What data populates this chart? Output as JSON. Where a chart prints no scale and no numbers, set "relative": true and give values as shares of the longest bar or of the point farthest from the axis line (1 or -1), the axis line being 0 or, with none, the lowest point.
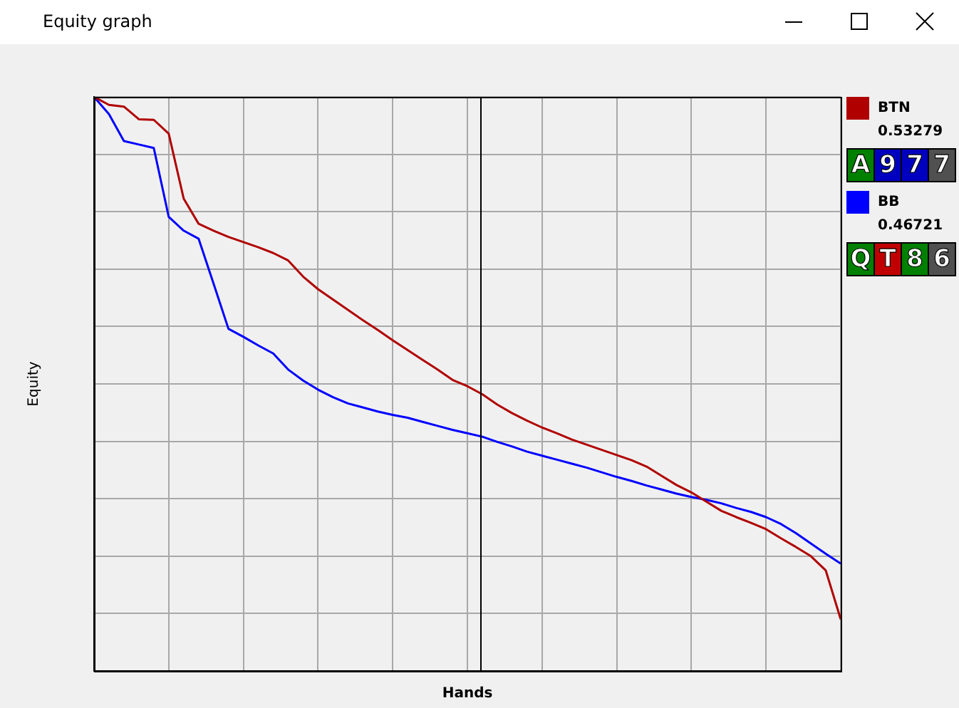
{
  "chart_data": {
    "type": "line",
    "title": "Equity graph",
    "xlabel": "Hands",
    "ylabel": "Equity",
    "relative": true,
    "categories": [
      null,
      null,
      null,
      null,
      null,
      null,
      null,
      null,
      null,
      null,
      null,
      null,
      null,
      null,
      null,
      null,
      null,
      null,
      null,
      null,
      null,
      null,
      null,
      null,
      null,
      null,
      null,
      null,
      null,
      null,
      null,
      null,
      null,
      null,
      null,
      null,
      null,
      null,
      null,
      null,
      null,
      null,
      null,
      null,
      null,
      null,
      null,
      null,
      null,
      null,
      null
    ],
    "grid": true,
    "legend": "right",
    "marker": "none",
    "line_style": "solid",
    "annotations": [
      "0.53279",
      "A 9 7 7",
      "0.46721",
      "Q T 8 6"
    ],
    "series": [
      {
        "name": "BTN",
        "color": "#b00000",
        "values": [
          1.0,
          0.986,
          0.983,
          0.961,
          0.96,
          0.936,
          0.823,
          0.779,
          0.767,
          0.756,
          0.747,
          0.738,
          0.728,
          0.715,
          0.687,
          0.665,
          0.647,
          0.629,
          0.611,
          0.594,
          0.576,
          0.559,
          0.542,
          0.525,
          0.507,
          0.496,
          0.482,
          0.464,
          0.449,
          0.436,
          0.424,
          0.414,
          0.403,
          0.394,
          0.385,
          0.376,
          0.367,
          0.356,
          0.34,
          0.324,
          0.311,
          0.295,
          0.279,
          0.268,
          0.258,
          0.247,
          0.231,
          0.216,
          0.2,
          0.175,
          0.09
        ]
      },
      {
        "name": "BB",
        "color": "#0000ff",
        "values": [
          1.0,
          0.97,
          0.923,
          0.917,
          0.911,
          0.791,
          0.767,
          0.753,
          0.675,
          0.596,
          0.582,
          0.567,
          0.553,
          0.525,
          0.506,
          0.49,
          0.477,
          0.466,
          0.459,
          0.452,
          0.446,
          0.441,
          0.434,
          0.427,
          0.42,
          0.414,
          0.408,
          0.399,
          0.391,
          0.382,
          0.375,
          0.368,
          0.361,
          0.354,
          0.346,
          0.338,
          0.331,
          0.323,
          0.316,
          0.309,
          0.303,
          0.298,
          0.292,
          0.284,
          0.277,
          0.268,
          0.256,
          0.24,
          0.222,
          0.204,
          0.187
        ]
      }
    ]
  }
}
